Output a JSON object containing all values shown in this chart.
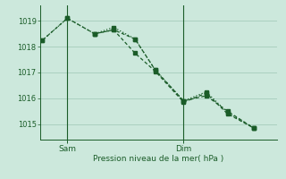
{
  "background_color": "#cce8dc",
  "grid_color": "#aad0c0",
  "line_color": "#1a5c28",
  "xlabel": "Pression niveau de la mer( hPa )",
  "ylim": [
    1014.4,
    1019.6
  ],
  "yticks": [
    1015,
    1016,
    1017,
    1018,
    1019
  ],
  "xlim": [
    0,
    10
  ],
  "sam_x": 1.15,
  "dim_x": 6.05,
  "series1_x": [
    0.1,
    1.15,
    2.3,
    3.1,
    4.0,
    4.85,
    6.05,
    7.0,
    7.9,
    9.0
  ],
  "series1_y": [
    1018.25,
    1019.1,
    1018.5,
    1018.65,
    1017.75,
    1017.05,
    1015.85,
    1016.2,
    1015.4,
    1014.85
  ],
  "series2_x": [
    0.1,
    1.15,
    2.3,
    3.1,
    4.0,
    4.85,
    6.05,
    7.0,
    7.9,
    9.0
  ],
  "series2_y": [
    1018.25,
    1019.1,
    1018.5,
    1018.75,
    1018.3,
    1017.1,
    1015.9,
    1016.25,
    1015.45,
    1014.85
  ],
  "series3_x": [
    2.3,
    3.1,
    4.0,
    4.85,
    6.05,
    7.0,
    7.9,
    9.0
  ],
  "series3_y": [
    1018.5,
    1018.65,
    1018.3,
    1017.1,
    1015.9,
    1016.1,
    1015.5,
    1014.85
  ],
  "xtick_sam_x": 1.15,
  "xtick_dim_x": 6.05,
  "xtick_labels": [
    "Sam",
    "Dim"
  ]
}
